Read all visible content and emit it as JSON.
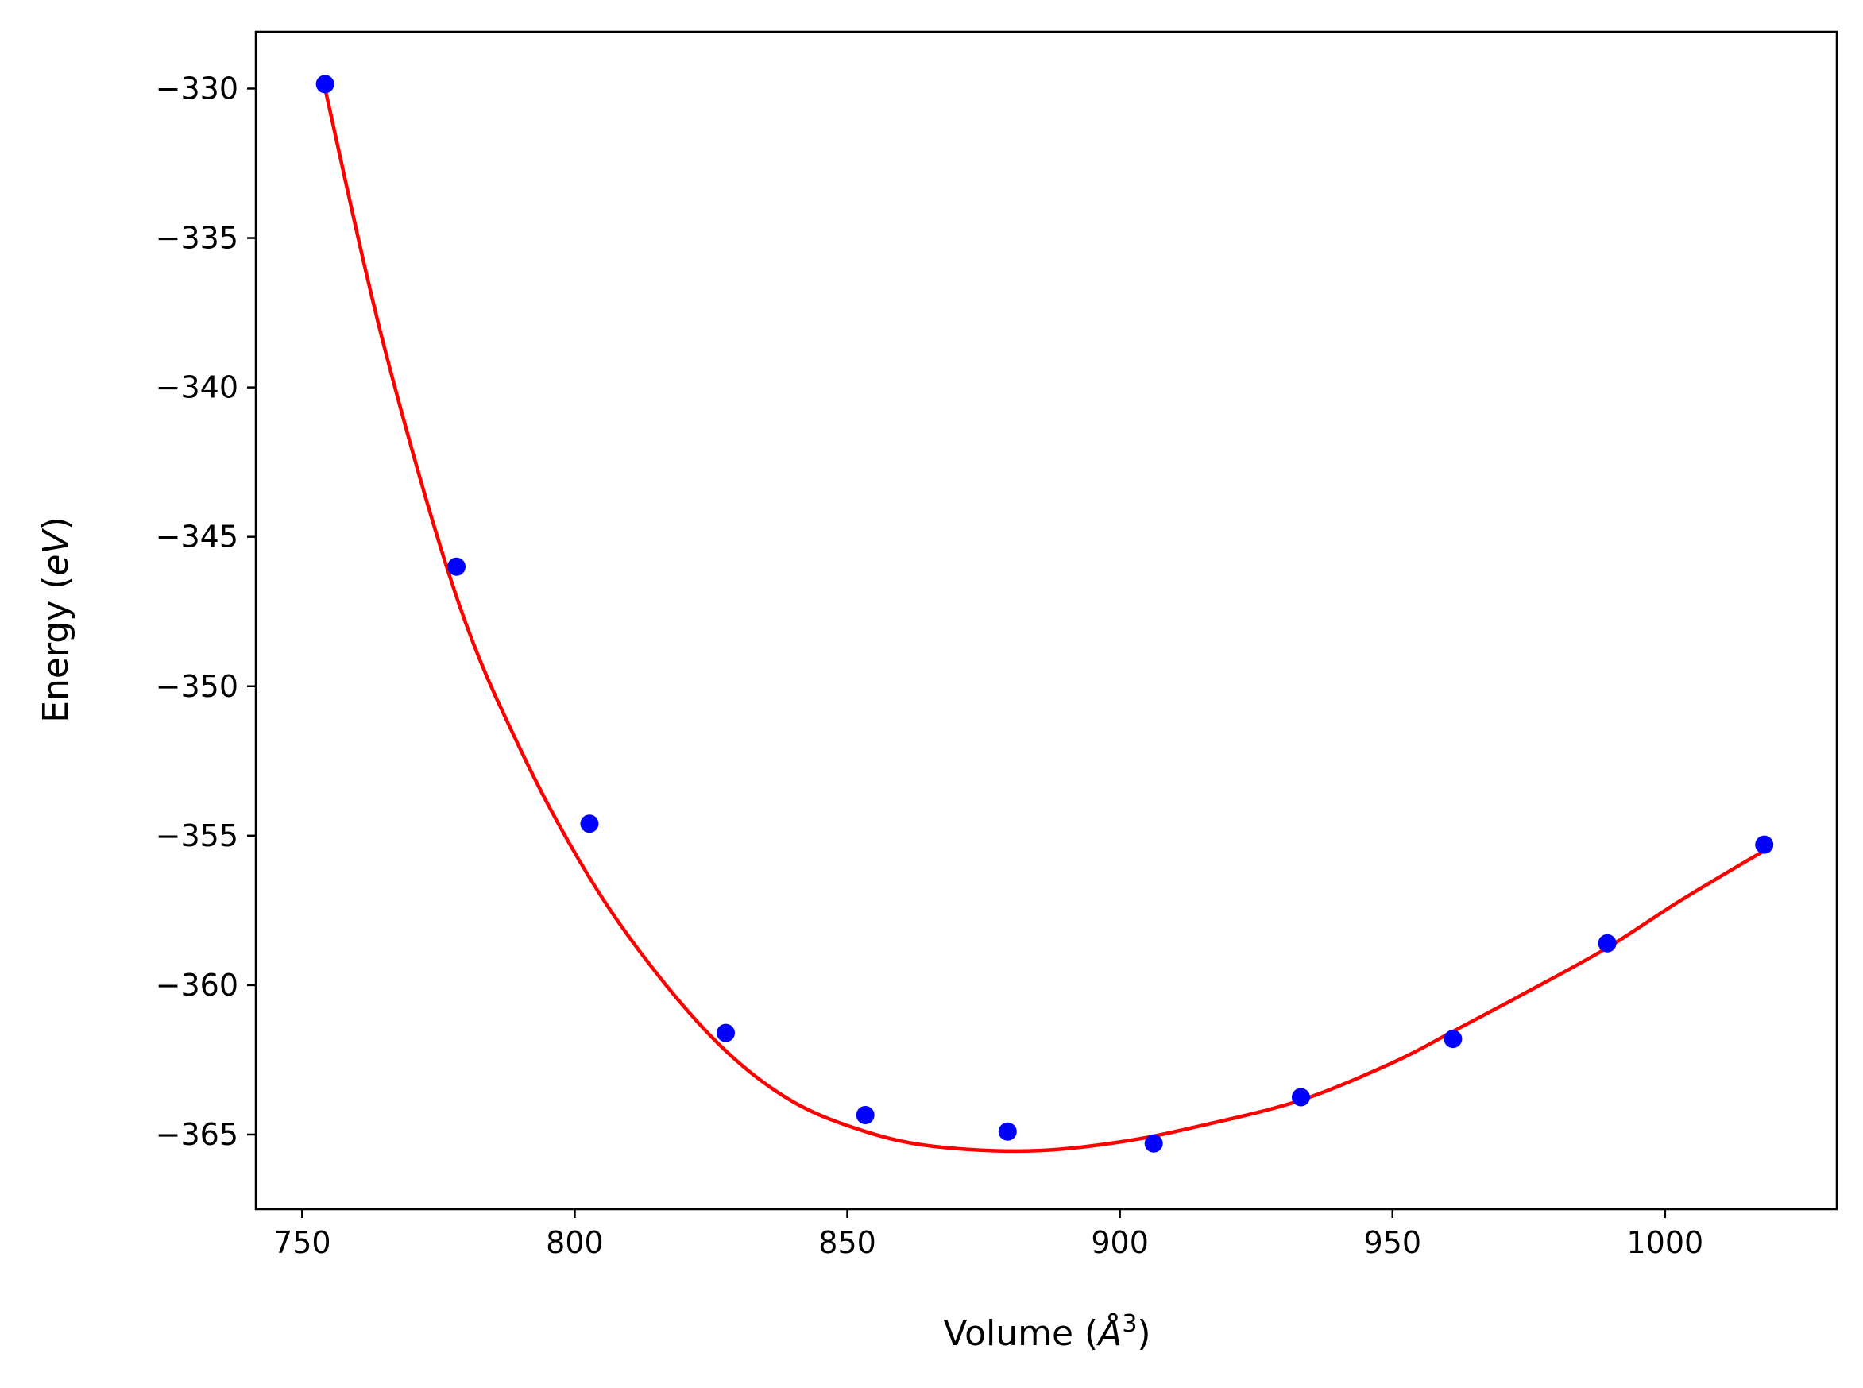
{
  "chart_data": {
    "type": "scatter",
    "title": "",
    "xlabel": "Volume (Å³)",
    "ylabel": "Energy (eV)",
    "xlabel_parts": {
      "prefix": "Volume (",
      "symbol": "Å",
      "exponent": "3",
      "suffix": ")"
    },
    "ylabel_parts": {
      "prefix": "Energy (",
      "italic": "eV",
      "suffix": ")"
    },
    "xlim": [
      741.5,
      1031.5
    ],
    "ylim": [
      -367.5,
      -328.1
    ],
    "xticks": [
      750,
      800,
      850,
      900,
      950,
      1000
    ],
    "yticks": [
      -330,
      -335,
      -340,
      -345,
      -350,
      -355,
      -360,
      -365
    ],
    "grid": false,
    "legend": null,
    "series": [
      {
        "kind": "points",
        "color": "#0000ff",
        "x": [
          754.2,
          778.3,
          802.7,
          827.7,
          853.3,
          879.4,
          906.2,
          933.2,
          961.1,
          989.4,
          1018.2
        ],
        "y": [
          -329.85,
          -346.0,
          -354.6,
          -361.6,
          -364.35,
          -364.9,
          -365.3,
          -363.75,
          -361.8,
          -358.6,
          -355.3
        ]
      },
      {
        "kind": "fit-curve",
        "color": "#ff0000",
        "x": [
          754.2,
          765,
          778.3,
          790,
          802.7,
          815,
          827.7,
          840,
          853.3,
          866,
          883.5,
          900,
          915,
          933.2,
          950,
          961.1,
          975,
          989.4,
          1003,
          1018.2
        ],
        "y": [
          -330.0,
          -338.6,
          -347.0,
          -352.1,
          -356.4,
          -359.6,
          -362.2,
          -363.9,
          -364.9,
          -365.4,
          -365.55,
          -365.25,
          -364.7,
          -363.85,
          -362.6,
          -361.55,
          -360.2,
          -358.75,
          -357.15,
          -355.5
        ]
      }
    ]
  }
}
